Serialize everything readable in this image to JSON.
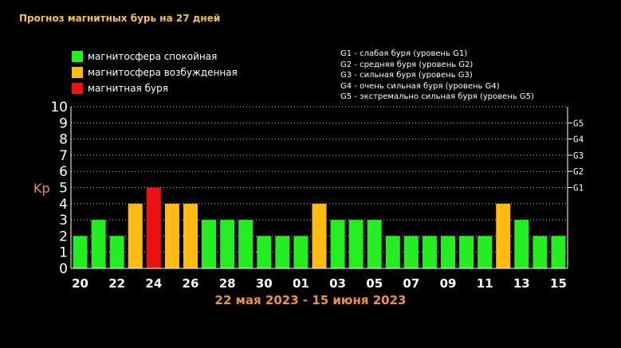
{
  "title": "Прогноз магнитных бурь на 27 дней",
  "legend": [
    {
      "label": "магнитосфера спокойная",
      "color": "#22ee22"
    },
    {
      "label": "магнитосфера возбужденная",
      "color": "#ffbb11"
    },
    {
      "label": "магнитная буря",
      "color": "#ee1111"
    }
  ],
  "g_key": [
    "G1 - слабая буря (уровень G1)",
    "G2 - средняя буря (уровень G2)",
    "G3 - сильная буря (уровень G3)",
    "G4 - очень сильная буря (уровень G4)",
    "G5 - экстремально сильная буря (уровень G5)"
  ],
  "date_range": "22 мая 2023 - 15 июня 2023",
  "colors": {
    "quiet": "#22ee22",
    "unsettled": "#ffbb11",
    "storm": "#ee1111"
  },
  "chart_data": {
    "type": "bar",
    "ylabel": "Kp",
    "ylim": [
      0,
      10
    ],
    "yticks": [
      0,
      1,
      2,
      3,
      4,
      5,
      6,
      7,
      8,
      9,
      10
    ],
    "right_ticks": [
      {
        "label": "G1",
        "value": 5
      },
      {
        "label": "G2",
        "value": 6
      },
      {
        "label": "G3",
        "value": 7
      },
      {
        "label": "G4",
        "value": 8
      },
      {
        "label": "G5",
        "value": 9
      }
    ],
    "grid": true,
    "x_tick_labels": [
      "20",
      "22",
      "24",
      "26",
      "28",
      "30",
      "01",
      "03",
      "05",
      "07",
      "09",
      "11",
      "13",
      "15"
    ],
    "values": [
      2,
      3,
      2,
      4,
      5,
      4,
      4,
      3,
      3,
      3,
      2,
      2,
      2,
      4,
      3,
      3,
      3,
      2,
      2,
      2,
      2,
      2,
      2,
      4,
      3,
      2,
      2
    ]
  }
}
